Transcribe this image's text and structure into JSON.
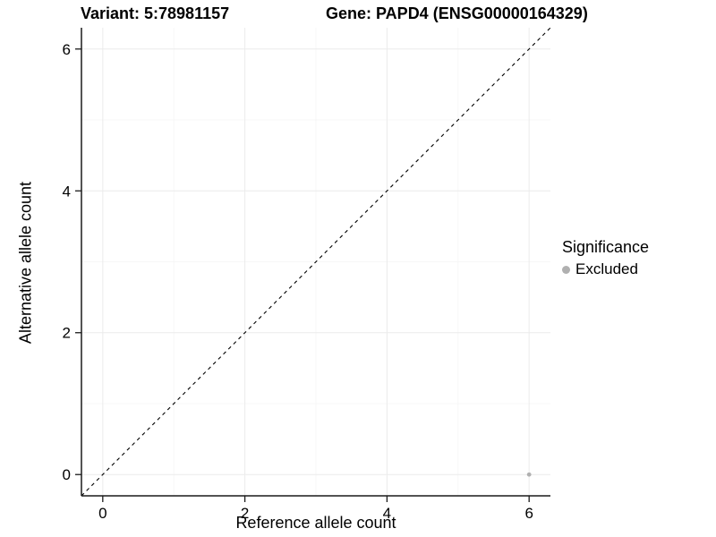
{
  "titles": {
    "variant": "Variant: 5:78981157",
    "gene": "Gene: PAPD4 (ENSG00000164329)"
  },
  "chart_data": {
    "type": "scatter",
    "title_left": "Variant: 5:78981157",
    "title_right": "Gene: PAPD4 (ENSG00000164329)",
    "xlabel": "Reference allele count",
    "ylabel": "Alternative allele count",
    "xlim": [
      -0.3,
      6.3
    ],
    "ylim": [
      -0.3,
      6.3
    ],
    "x_ticks": [
      0,
      2,
      4,
      6
    ],
    "y_ticks": [
      0,
      2,
      4,
      6
    ],
    "grid_major": [
      0,
      2,
      4,
      6
    ],
    "grid_minor": [
      1,
      3,
      5
    ],
    "grid": true,
    "reference_line": {
      "kind": "diagonal-identity",
      "style": "dashed",
      "color": "#000000"
    },
    "series": [
      {
        "name": "Excluded",
        "color": "#b0b0b0",
        "points": [
          {
            "x": 6,
            "y": 0
          }
        ]
      }
    ],
    "legend": {
      "title": "Significance",
      "position": "right",
      "entries": [
        {
          "label": "Excluded",
          "color": "#b0b0b0"
        }
      ]
    },
    "colors": {
      "panel_background": "#ffffff",
      "grid_major": "#ebebeb",
      "grid_minor": "#f5f5f5",
      "axis_line": "#1a1a1a",
      "tick_label": "#000000"
    }
  }
}
